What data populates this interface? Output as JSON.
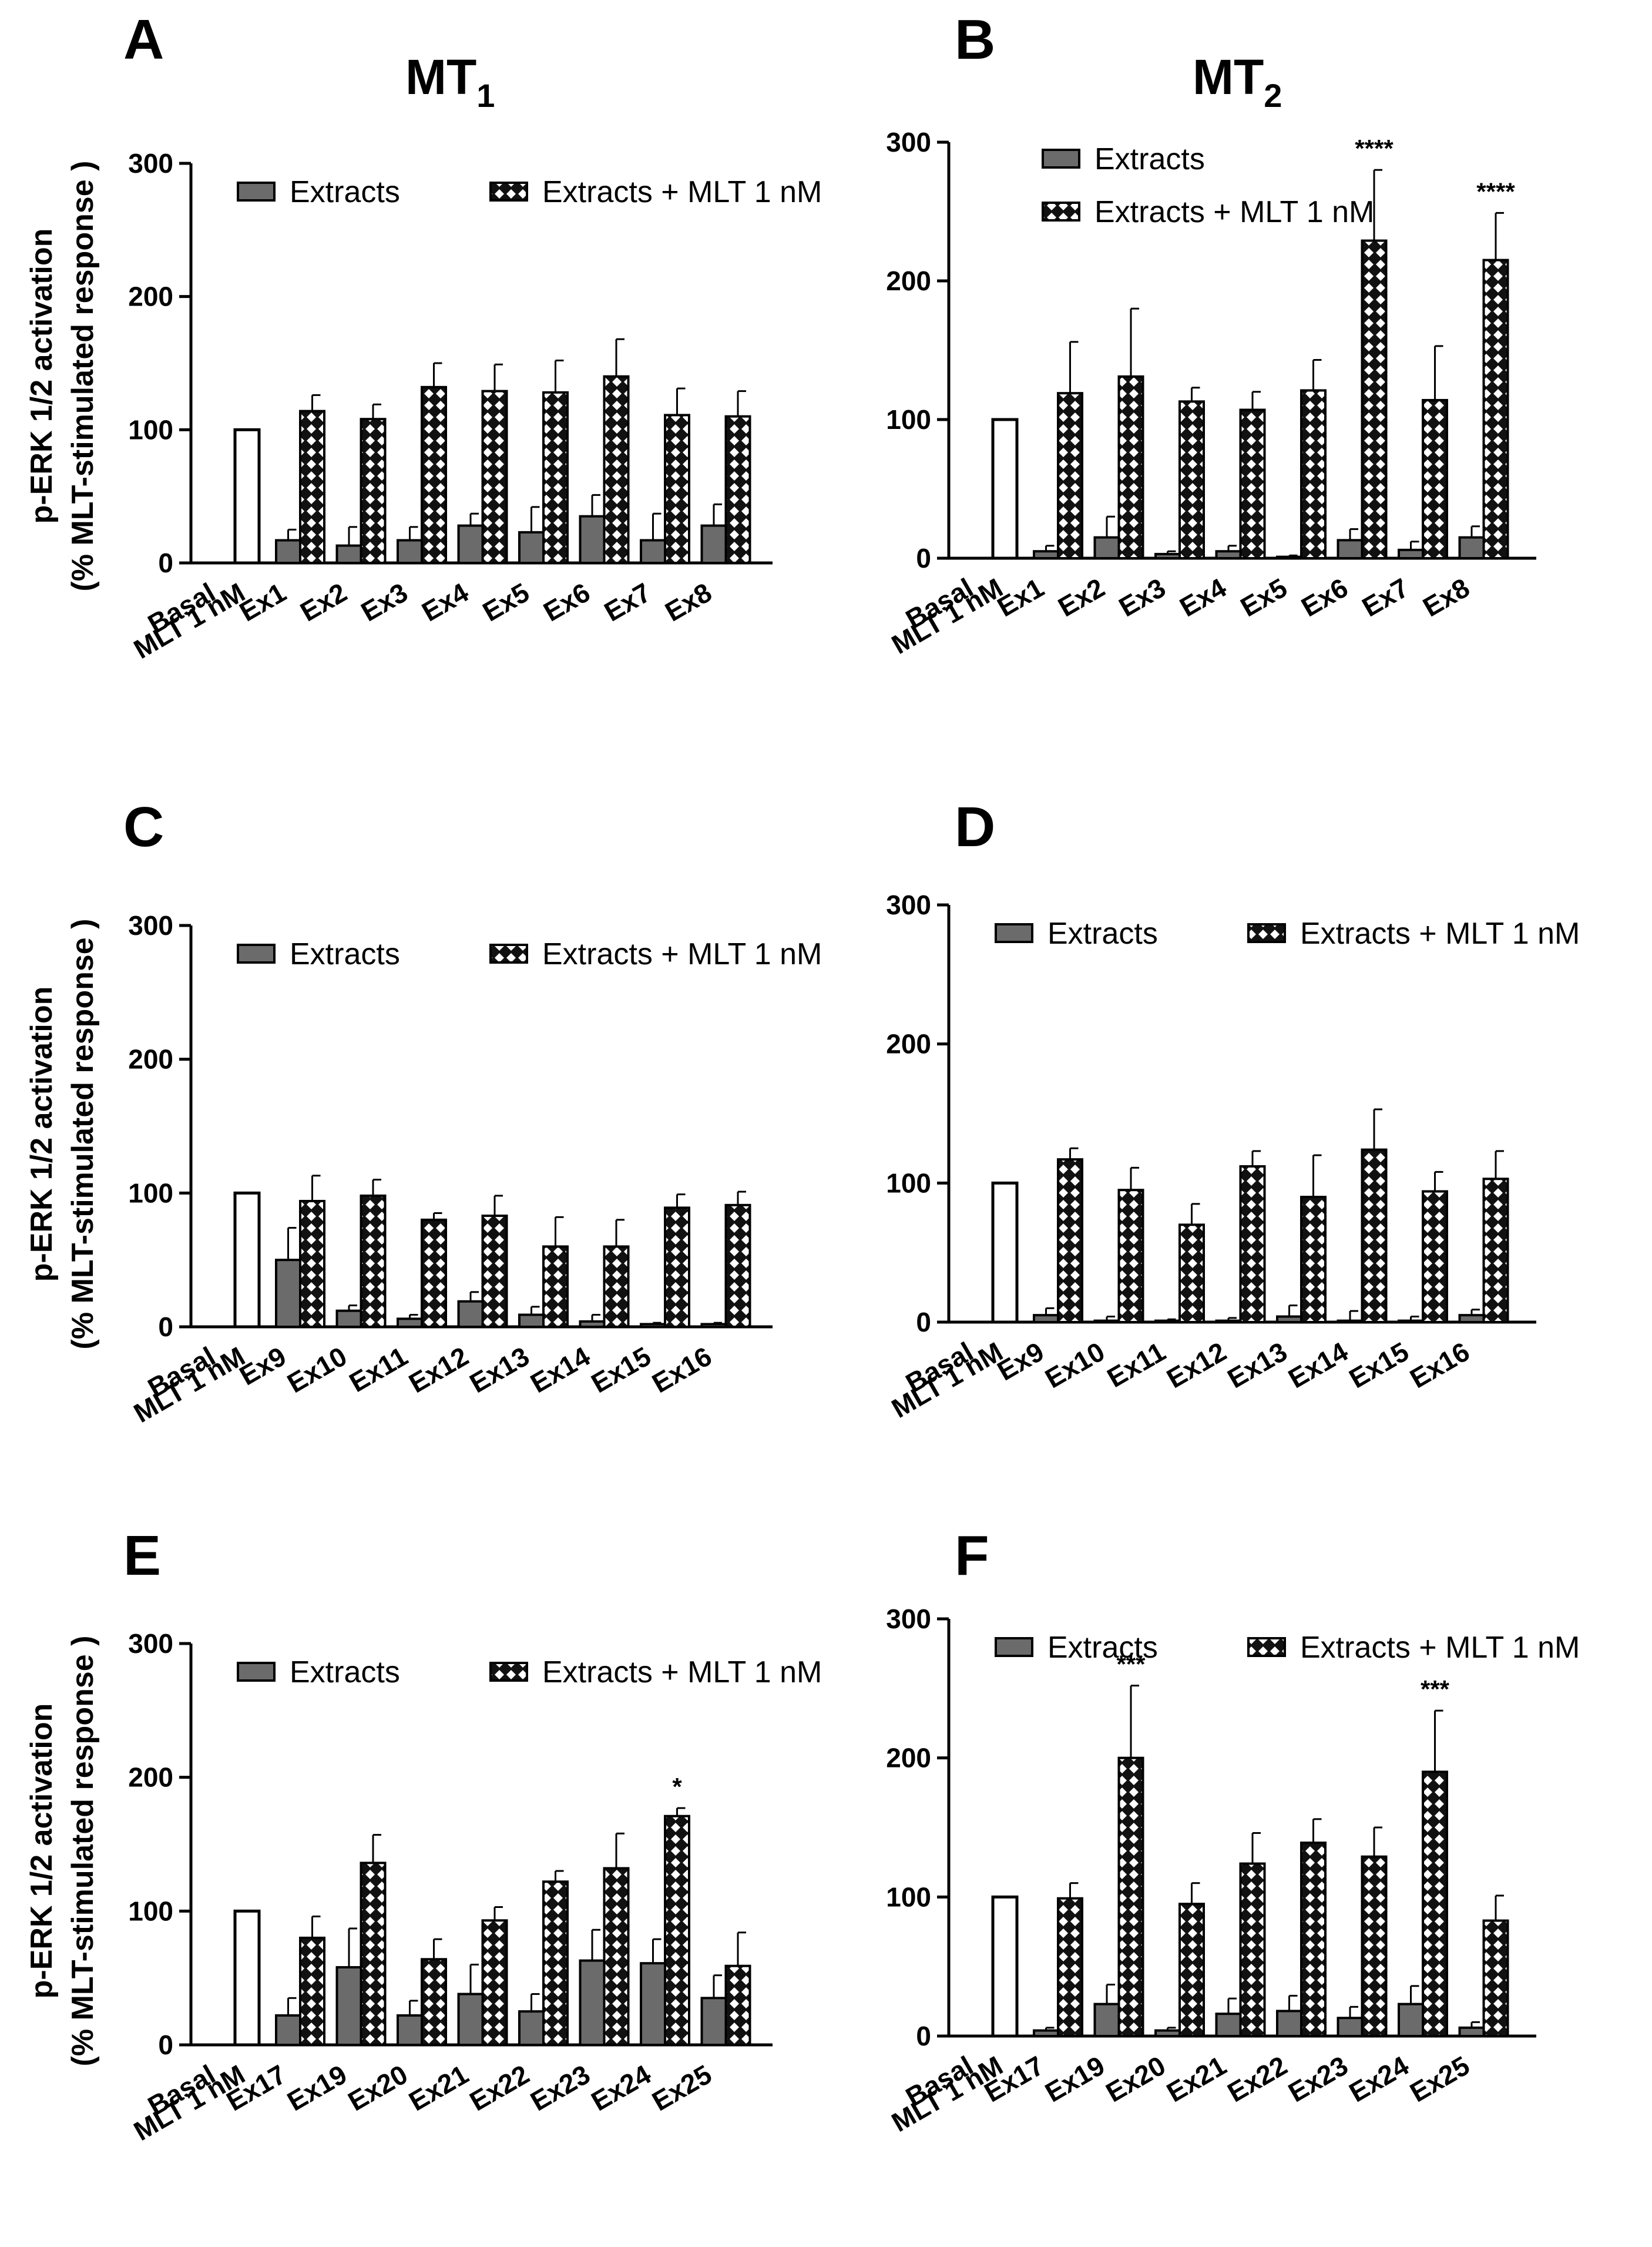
{
  "figure": {
    "columns": [
      {
        "title": "MT",
        "sub": "1"
      },
      {
        "title": "MT",
        "sub": "2"
      }
    ],
    "ylabel_line1": "p-ERK 1/2 activation",
    "ylabel_line2": "(% MLT-stimulated response )"
  },
  "colors": {
    "extracts": "#6b6b6b",
    "mlt_bar": "#111111",
    "basal_bar": "#ffffff",
    "axis": "#000000"
  },
  "chart_data": [
    {
      "panel": "A",
      "type": "bar",
      "title": "MT1",
      "ylim": [
        0,
        300
      ],
      "yticks": [
        0,
        100,
        200,
        300
      ],
      "legend": [
        "Extracts",
        "Extracts + MLT 1 nM"
      ],
      "legend_layout": "row",
      "categories": [
        "Basal",
        "MLT 1 nM",
        "Ex1",
        "Ex2",
        "Ex3",
        "Ex4",
        "Ex5",
        "Ex6",
        "Ex7",
        "Ex8"
      ],
      "mlt_control": 100,
      "extracts": [
        17,
        13,
        17,
        28,
        23,
        35,
        17,
        28
      ],
      "extracts_err": [
        8,
        14,
        10,
        9,
        19,
        16,
        20,
        16
      ],
      "extracts_mlt": [
        114,
        108,
        132,
        129,
        128,
        140,
        111,
        110
      ],
      "extracts_mlt_err": [
        12,
        11,
        18,
        20,
        24,
        28,
        20,
        19
      ],
      "significance": [
        "",
        "",
        "",
        "",
        "",
        "",
        "",
        ""
      ]
    },
    {
      "panel": "B",
      "type": "bar",
      "title": "MT2",
      "ylim": [
        0,
        300
      ],
      "yticks": [
        0,
        100,
        200,
        300
      ],
      "legend": [
        "Extracts",
        "Extracts + MLT 1 nM"
      ],
      "legend_layout": "stack",
      "categories": [
        "Basal",
        "MLT 1 nM",
        "Ex1",
        "Ex2",
        "Ex3",
        "Ex4",
        "Ex5",
        "Ex6",
        "Ex7",
        "Ex8"
      ],
      "mlt_control": 100,
      "extracts": [
        5,
        15,
        3,
        5,
        1,
        13,
        6,
        15
      ],
      "extracts_err": [
        4,
        15,
        2,
        4,
        1,
        8,
        6,
        8
      ],
      "extracts_mlt": [
        119,
        131,
        113,
        107,
        121,
        229,
        114,
        215
      ],
      "extracts_mlt_err": [
        37,
        49,
        10,
        13,
        22,
        51,
        39,
        34
      ],
      "significance": [
        "",
        "",
        "",
        "",
        "",
        "****",
        "",
        "****"
      ]
    },
    {
      "panel": "C",
      "type": "bar",
      "title": "",
      "ylim": [
        0,
        300
      ],
      "yticks": [
        0,
        100,
        200,
        300
      ],
      "legend": [
        "Extracts",
        "Extracts + MLT 1 nM"
      ],
      "legend_layout": "row",
      "categories": [
        "Basal",
        "MLT 1 nM",
        "Ex9",
        "Ex10",
        "Ex11",
        "Ex12",
        "Ex13",
        "Ex14",
        "Ex15",
        "Ex16"
      ],
      "mlt_control": 100,
      "extracts": [
        50,
        12,
        6,
        19,
        9,
        4,
        2,
        2
      ],
      "extracts_err": [
        24,
        4,
        3,
        7,
        6,
        5,
        1,
        1
      ],
      "extracts_mlt": [
        94,
        98,
        80,
        83,
        60,
        60,
        89,
        91
      ],
      "extracts_mlt_err": [
        19,
        12,
        5,
        15,
        22,
        20,
        10,
        10
      ],
      "significance": [
        "",
        "",
        "",
        "",
        "",
        "",
        "",
        ""
      ]
    },
    {
      "panel": "D",
      "type": "bar",
      "title": "",
      "ylim": [
        0,
        300
      ],
      "yticks": [
        0,
        100,
        200,
        300
      ],
      "legend": [
        "Extracts",
        "Extracts + MLT 1 nM"
      ],
      "legend_layout": "row",
      "categories": [
        "Basal",
        "MLT 1 nM",
        "Ex9",
        "Ex10",
        "Ex11",
        "Ex12",
        "Ex13",
        "Ex14",
        "Ex15",
        "Ex16"
      ],
      "mlt_control": 100,
      "extracts": [
        5,
        1,
        1,
        1,
        4,
        1,
        1,
        5
      ],
      "extracts_err": [
        5,
        3,
        1,
        2,
        8,
        7,
        3,
        4
      ],
      "extracts_mlt": [
        117,
        95,
        70,
        112,
        90,
        124,
        94,
        103
      ],
      "extracts_mlt_err": [
        8,
        16,
        15,
        11,
        30,
        29,
        14,
        20
      ],
      "significance": [
        "",
        "",
        "",
        "",
        "",
        "",
        "",
        ""
      ]
    },
    {
      "panel": "E",
      "type": "bar",
      "title": "",
      "ylim": [
        0,
        300
      ],
      "yticks": [
        0,
        100,
        200,
        300
      ],
      "legend": [
        "Extracts",
        "Extracts + MLT 1 nM"
      ],
      "legend_layout": "row",
      "categories": [
        "Basal",
        "MLT 1 nM",
        "Ex17",
        "Ex19",
        "Ex20",
        "Ex21",
        "Ex22",
        "Ex23",
        "Ex24",
        "Ex25"
      ],
      "mlt_control": 100,
      "extracts": [
        22,
        58,
        22,
        38,
        25,
        63,
        61,
        35
      ],
      "extracts_err": [
        13,
        29,
        11,
        22,
        13,
        23,
        18,
        17
      ],
      "extracts_mlt": [
        80,
        136,
        64,
        93,
        122,
        132,
        171,
        59
      ],
      "extracts_mlt_err": [
        16,
        21,
        15,
        10,
        8,
        26,
        6,
        25
      ],
      "significance": [
        "",
        "",
        "",
        "",
        "",
        "",
        "*",
        ""
      ]
    },
    {
      "panel": "F",
      "type": "bar",
      "title": "",
      "ylim": [
        0,
        300
      ],
      "yticks": [
        0,
        100,
        200,
        300
      ],
      "legend": [
        "Extracts",
        "Extracts + MLT 1 nM"
      ],
      "legend_layout": "row",
      "categories": [
        "Basal",
        "MLT 1 nM",
        "Ex17",
        "Ex19",
        "Ex20",
        "Ex21",
        "Ex22",
        "Ex23",
        "Ex24",
        "Ex25"
      ],
      "mlt_control": 100,
      "extracts": [
        4,
        23,
        4,
        16,
        18,
        13,
        23,
        6
      ],
      "extracts_err": [
        2,
        14,
        2,
        11,
        11,
        8,
        13,
        4
      ],
      "extracts_mlt": [
        99,
        200,
        95,
        124,
        139,
        129,
        190,
        83
      ],
      "extracts_mlt_err": [
        11,
        52,
        15,
        22,
        17,
        21,
        44,
        18
      ],
      "significance": [
        "",
        "***",
        "",
        "",
        "",
        "",
        "***",
        ""
      ]
    }
  ]
}
